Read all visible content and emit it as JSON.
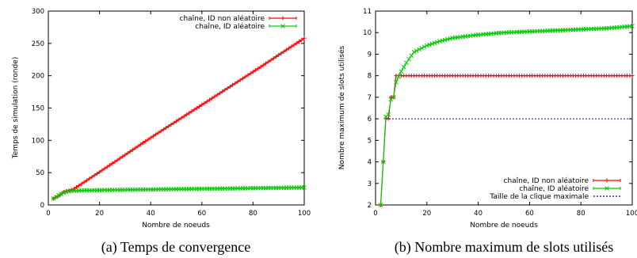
{
  "chart_data": [
    {
      "type": "line",
      "xlabel": "Nombre de noeuds",
      "ylabel": "Temps de simulation (ronde)",
      "xlim": [
        0,
        100
      ],
      "ylim": [
        0,
        300
      ],
      "xticks": [
        "0",
        "20",
        "40",
        "60",
        "80",
        "100"
      ],
      "yticks": [
        "0",
        "50",
        "100",
        "150",
        "200",
        "250",
        "300"
      ],
      "legend_position": "top-right",
      "caption": "(a) Temps de convergence",
      "series": [
        {
          "name": "chaîne, ID non aléatoire",
          "color": "#ff0000",
          "marker": "plus",
          "x": [
            2,
            4,
            6,
            10,
            20,
            40,
            60,
            80,
            100
          ],
          "y": [
            10,
            14,
            20,
            25,
            51,
            104,
            155,
            206,
            258
          ]
        },
        {
          "name": "chaîne, ID aléatoire",
          "color": "#00cc00",
          "marker": "x",
          "x": [
            2,
            4,
            6,
            8,
            10,
            20,
            40,
            60,
            80,
            100
          ],
          "y": [
            10,
            15,
            19,
            21,
            22,
            23,
            24,
            25,
            26,
            27
          ]
        }
      ]
    },
    {
      "type": "line",
      "xlabel": "Nombre de noeuds",
      "ylabel": "Nombre maximum de slots utilisés",
      "xlim": [
        0,
        100
      ],
      "ylim": [
        2,
        11
      ],
      "xticks": [
        "0",
        "20",
        "40",
        "60",
        "80",
        "100"
      ],
      "yticks": [
        "2",
        "3",
        "4",
        "5",
        "6",
        "7",
        "8",
        "9",
        "10",
        "11"
      ],
      "legend_position": "bottom-right",
      "caption": "(b) Nombre maximum de slots utilisés",
      "series": [
        {
          "name": "chaîne, ID non aléatoire",
          "color": "#ff0000",
          "marker": "plus",
          "x": [
            2,
            3,
            4,
            5,
            6,
            7,
            8,
            9,
            100
          ],
          "y": [
            2,
            4,
            6,
            6,
            7,
            7,
            8,
            8,
            8
          ]
        },
        {
          "name": "chaîne, ID aléatoire",
          "color": "#00cc00",
          "marker": "x",
          "x": [
            2,
            3,
            4,
            5,
            6,
            7,
            8,
            10,
            12,
            15,
            20,
            25,
            30,
            40,
            50,
            60,
            70,
            80,
            90,
            100
          ],
          "y": [
            2,
            4,
            6.1,
            6.2,
            6.9,
            7.0,
            7.7,
            8.2,
            8.6,
            9.1,
            9.4,
            9.6,
            9.75,
            9.9,
            10.0,
            10.05,
            10.1,
            10.15,
            10.2,
            10.3
          ]
        },
        {
          "name": "Taille de la clique maximale",
          "color": "#0000cc",
          "dash": true,
          "x": [
            4,
            100
          ],
          "y": [
            6,
            6
          ]
        }
      ]
    }
  ]
}
